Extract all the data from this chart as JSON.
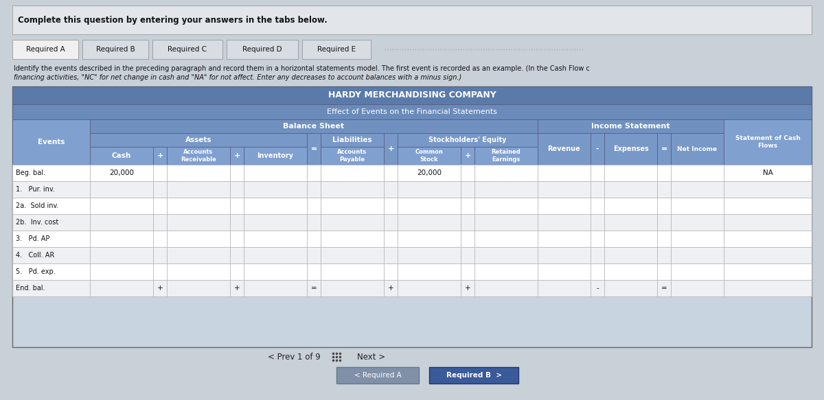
{
  "title_main": "HARDY MERCHANDISING COMPANY",
  "title_sub": "Effect of Events on the Financial Statements",
  "header_instruction": "Complete this question by entering your answers in the tabs below.",
  "tabs": [
    "Required A",
    "Required B",
    "Required C",
    "Required D",
    "Required E"
  ],
  "body_text_line1": "Identify the events described in the preceding paragraph and record them in a horizontal statements model. The first event is recorded as an example. (In the Cash Flow c",
  "body_text_line2": "financing activities, \"NC\" for net change in cash and \"NA\" for not affect. Enter any decreases to account balances with a minus sign.)",
  "rows": [
    {
      "label": "Beg. bal.",
      "cash": "20,000",
      "ar": "",
      "inv": "",
      "ap": "",
      "cs": "20,000",
      "re": "",
      "rev": "",
      "exp": "",
      "ni": "",
      "scf": "NA"
    },
    {
      "label": "1.   Pur. inv.",
      "cash": "",
      "ar": "",
      "inv": "",
      "ap": "",
      "cs": "",
      "re": "",
      "rev": "",
      "exp": "",
      "ni": "",
      "scf": ""
    },
    {
      "label": "2a.  Sold inv.",
      "cash": "",
      "ar": "",
      "inv": "",
      "ap": "",
      "cs": "",
      "re": "",
      "rev": "",
      "exp": "",
      "ni": "",
      "scf": ""
    },
    {
      "label": "2b.  Inv. cost",
      "cash": "",
      "ar": "",
      "inv": "",
      "ap": "",
      "cs": "",
      "re": "",
      "rev": "",
      "exp": "",
      "ni": "",
      "scf": ""
    },
    {
      "label": "3.   Pd. AP",
      "cash": "",
      "ar": "",
      "inv": "",
      "ap": "",
      "cs": "",
      "re": "",
      "rev": "",
      "exp": "",
      "ni": "",
      "scf": ""
    },
    {
      "label": "4.   Coll. AR",
      "cash": "",
      "ar": "",
      "inv": "",
      "ap": "",
      "cs": "",
      "re": "",
      "rev": "",
      "exp": "",
      "ni": "",
      "scf": ""
    },
    {
      "label": "5.   Pd. exp.",
      "cash": "",
      "ar": "",
      "inv": "",
      "ap": "",
      "cs": "",
      "re": "",
      "rev": "",
      "exp": "",
      "ni": "",
      "scf": ""
    },
    {
      "label": "End. bal.",
      "cash": "",
      "ar": "",
      "inv": "",
      "ap": "",
      "cs": "",
      "re": "",
      "rev": "",
      "exp": "",
      "ni": "",
      "scf": ""
    }
  ],
  "bg_color": "#b0bac4",
  "page_bg": "#c8d0d8",
  "outer_box_bg": "#d8dde3",
  "tab_active_bg": "#f0f0f0",
  "tab_inactive_bg": "#d8dde3",
  "table_title_bg": "#5a7aaa",
  "table_subtitle_bg": "#6a8aba",
  "table_header1_bg": "#7090c0",
  "table_header2_bg": "#7898c8",
  "table_header3_bg": "#80a0d0",
  "table_white_row": "#ffffff",
  "table_light_row": "#eef0f4",
  "btn_gray_bg": "#8090a8",
  "btn_blue_bg": "#3a5a9a",
  "text_dark": "#1a1a1a",
  "text_white": "#ffffff",
  "border_color": "#888888",
  "nav_prev": "< Prev",
  "nav_page": "1 of 9",
  "nav_next": "Next >",
  "btn_a_label": "< Required A",
  "btn_b_label": "Required B  >"
}
